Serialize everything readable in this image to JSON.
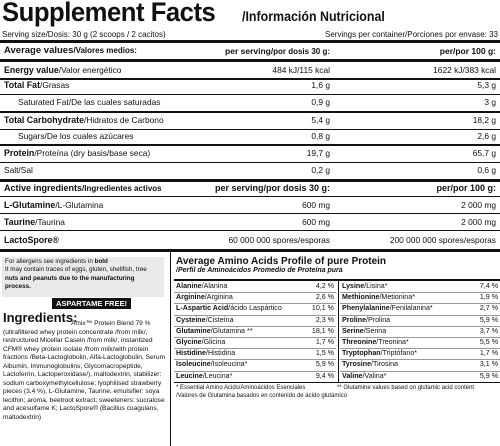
{
  "header": {
    "title": "Supplement Facts",
    "subtitle": "/Información Nutricional",
    "serving_size": "Serving size/Dosis: 30 g (2 scoops / 2 cacitos)",
    "servings_per_container": "Servings per container/Porciones por envase: 33"
  },
  "average_values": {
    "label_bold": "Average values",
    "label_light": "/Valores medios:",
    "per_serving_bold": "per serving",
    "per_serving_light": "/por dosis 30 g:",
    "per_100_bold": "per/por 100 g:"
  },
  "nutrients": [
    {
      "bold": "Energy value",
      "light": "/Valor energético",
      "serving": "484 kJ/115 kcal",
      "per100": "1622 kJ/383 kcal"
    },
    {
      "bold": "Total Fat",
      "light": "/Grasas",
      "serving": "1,6 g",
      "per100": "5,3 g"
    },
    {
      "bold": "",
      "light": "Saturated Fat/De las cuales saturadas",
      "serving": "0,9 g",
      "per100": "3 g",
      "indent": true
    },
    {
      "bold": "Total Carbohydrate",
      "light": "/Hidratos de Carbono",
      "serving": "5,4 g",
      "per100": "18,2 g"
    },
    {
      "bold": "",
      "light": "Sugars/De los cuales azúcares",
      "serving": "0,8 g",
      "per100": "2,6 g",
      "indent": true
    },
    {
      "bold": "Protein",
      "light": "/Proteína (dry basis/base seca)",
      "serving": "19,7 g",
      "per100": "65,7 g"
    },
    {
      "bold": "",
      "light": "Salt/Sal",
      "serving": "0,2 g",
      "per100": "0,6 g"
    }
  ],
  "active": {
    "label_bold": "Active ingredients",
    "label_light": "/Ingredientes activos",
    "per_serving": "per serving/por dosis 30 g:",
    "per_100": "per/por 100 g:",
    "rows": [
      {
        "bold": "L-Glutamine",
        "light": "/L-Glutamina",
        "serving": "600 mg",
        "per100": "2 000 mg"
      },
      {
        "bold": "Taurine",
        "light": "/Taurina",
        "serving": "600 mg",
        "per100": "2 000 mg"
      },
      {
        "bold": "LactoSpore®",
        "light": "",
        "serving": "60 000 000 spores/esporas",
        "per100": "200 000 000 spores/esporas"
      }
    ]
  },
  "allergen": {
    "line1_pre": "For allergens see ingredients in ",
    "line1_bold": "bold",
    "line2": "It may contain traces of eggs, gluten, shellfish, tree",
    "line3": "nuts and peanuts due to the manufacturing process."
  },
  "aspartame": "ASPARTAME FREE!",
  "ingredients_title": "Ingredients:",
  "ingredients_text": "Amix™ Protein Blend 79 % (ultrafiltered whey protein concentrate /from milk/, restructured Micellar Casein /from milk/, instantized CFM® whey protein isolate /from milk/with protein fractions /Beta-Lactoglobulin, Alfa-Lactoglobulin, Serum Albumin, Immunoglobulins, Glycomacropeptide, Lactoferrin, Lactoperoxidase/), maltodextrin, stabilizer: sodium carboxymethylcellulose; lyophilised strawberry pieces (3,4 %), L-Glutamine, Taurine, emulsifier: soya lecithin; aroma, beetroot extract; sweeteners: sucralose and acesulfame K; LactoSpore® (Bacillus coagulans, maltodextrin)",
  "amino": {
    "title": "Average Amino Acids Profile of pure Protein",
    "subtitle": "/Perfil de Aminoácidos Promedio de Proteína pura",
    "left": [
      {
        "name": "Alanine",
        "es": "/Alanina",
        "val": "4,2 %"
      },
      {
        "name": "Arginine",
        "es": "/Arginina",
        "val": "2,6 %"
      },
      {
        "name": "L-Aspartic Acid",
        "es": "/ácido Laspártico",
        "val": "10,1 %"
      },
      {
        "name": "Cysteine",
        "es": "/Cisteína",
        "val": "2,3 %"
      },
      {
        "name": "Glutamine",
        "es": "/Glutamina **",
        "val": "18,1 %"
      },
      {
        "name": "Glycine",
        "es": "/Glicina",
        "val": "1,7 %"
      },
      {
        "name": "Histidine",
        "es": "/Histidina",
        "val": "1,5 %"
      },
      {
        "name": "Isoleucine",
        "es": "/Isoleucina*",
        "val": "5,9 %"
      },
      {
        "name": "Leucine",
        "es": "/Leucina*",
        "val": "9,4 %"
      }
    ],
    "right": [
      {
        "name": "Lysine",
        "es": "/Lisina*",
        "val": "7,4 %"
      },
      {
        "name": "Methionine",
        "es": "/Metionina*",
        "val": "1,9 %"
      },
      {
        "name": "Phenylalanine",
        "es": "/Fenilalanina*",
        "val": "2,7 %"
      },
      {
        "name": "Proline",
        "es": "/Prolina",
        "val": "5,9 %"
      },
      {
        "name": "Serine",
        "es": "/Serina",
        "val": "3,7 %"
      },
      {
        "name": "Threonine",
        "es": "/Treonina*",
        "val": "5,5 %"
      },
      {
        "name": "Tryptophan",
        "es": "/Triptófano*",
        "val": "1,7 %"
      },
      {
        "name": "Tyrosine",
        "es": "/Tirosina",
        "val": "3,1 %"
      },
      {
        "name": "Valine",
        "es": "/Valina*",
        "val": "5,9 %"
      }
    ],
    "foot1": "* Essential Amino Acids/Aminoácidos Esenciales",
    "foot2": "** Glutamine values based on glutamic acid content",
    "foot3": "/Valores de Glutamina basados en contenido de ácido glutámico"
  }
}
